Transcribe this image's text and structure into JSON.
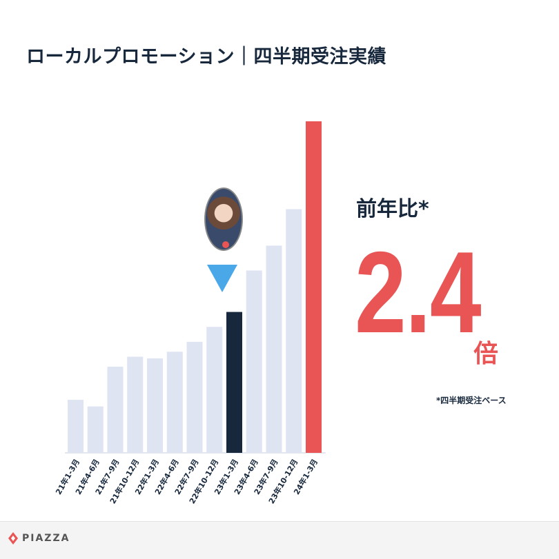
{
  "title": "ローカルプロモーション｜四半期受注実績",
  "yoy": {
    "label": "前年比*",
    "value": "2.4",
    "unit": "倍",
    "footnote": "*四半期受注ベース"
  },
  "logo_text": "PIAZZA",
  "colors": {
    "bar_default": "#dfe4f3",
    "bar_highlight": "#17283d",
    "bar_latest": "#e95555",
    "marker": "#4aa8e8",
    "text_dark": "#17283d"
  },
  "chart_data": {
    "type": "bar",
    "categories": [
      "21年1-3月",
      "21年4-6月",
      "21年7-9月",
      "21年10-12月",
      "22年1-3月",
      "22年4-6月",
      "22年7-9月",
      "22年10-12月",
      "23年1-3月",
      "23年4-6月",
      "23年7-9月",
      "23年10-12月",
      "24年1-3月"
    ],
    "values": [
      16,
      14,
      26,
      29,
      28.5,
      30.5,
      33.5,
      38,
      42.5,
      55,
      62.5,
      73.5,
      100
    ],
    "highlight": [
      "bar_default",
      "bar_default",
      "bar_default",
      "bar_default",
      "bar_default",
      "bar_default",
      "bar_default",
      "bar_default",
      "bar_highlight",
      "bar_default",
      "bar_default",
      "bar_default",
      "bar_latest"
    ],
    "ylim": [
      0,
      100
    ],
    "title": "",
    "xlabel": "",
    "ylabel": "",
    "grid": false
  }
}
